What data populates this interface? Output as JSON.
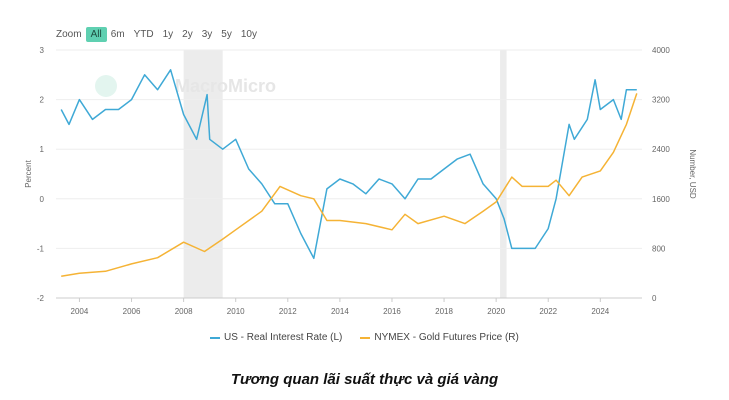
{
  "zoom": {
    "label": "Zoom",
    "buttons": [
      "All",
      "6m",
      "YTD",
      "1y",
      "2y",
      "3y",
      "5y",
      "10y"
    ],
    "active": "All"
  },
  "watermark": "MacroMicro",
  "colors": {
    "rate": "#3fa9d6",
    "gold": "#f5b335",
    "band": "#ececec",
    "active": "#5fd0b1"
  },
  "caption": "Tương quan lãi suất thực và giá vàng",
  "chart_data": {
    "type": "line",
    "title": "",
    "xlabel": "",
    "ylabel_left": "Percent",
    "ylabel_right": "Number, USD",
    "xlim": [
      2003.1,
      2025.6
    ],
    "ylim_left": [
      -2,
      3
    ],
    "ylim_right": [
      0,
      4000
    ],
    "xticks": [
      "2004",
      "2006",
      "2008",
      "2010",
      "2012",
      "2014",
      "2016",
      "2018",
      "2020",
      "2022",
      "2024"
    ],
    "yticks_left": [
      "3",
      "2",
      "1",
      "0",
      "-1",
      "-2"
    ],
    "yticks_right": [
      "4000",
      "3200",
      "2400",
      "1600",
      "800",
      "0"
    ],
    "grid": true,
    "legend_position": "bottom",
    "shaded_periods": [
      [
        2008.0,
        2009.5
      ],
      [
        2020.15,
        2020.4
      ]
    ],
    "series": [
      {
        "name": "US - Real Interest Rate (L)",
        "axis": "left",
        "x": [
          2003.3,
          2003.6,
          2004.0,
          2004.5,
          2005.0,
          2005.5,
          2006.0,
          2006.5,
          2007.0,
          2007.5,
          2008.0,
          2008.5,
          2008.9,
          2009.0,
          2009.5,
          2010.0,
          2010.5,
          2011.0,
          2011.5,
          2012.0,
          2012.5,
          2013.0,
          2013.5,
          2014.0,
          2014.5,
          2015.0,
          2015.5,
          2016.0,
          2016.5,
          2017.0,
          2017.5,
          2018.0,
          2018.5,
          2019.0,
          2019.5,
          2020.0,
          2020.3,
          2020.6,
          2021.0,
          2021.5,
          2022.0,
          2022.3,
          2022.8,
          2023.0,
          2023.5,
          2023.8,
          2024.0,
          2024.5,
          2024.8,
          2025.0,
          2025.4
        ],
        "values": [
          1.8,
          1.5,
          2.0,
          1.6,
          1.8,
          1.8,
          2.0,
          2.5,
          2.2,
          2.6,
          1.7,
          1.2,
          2.1,
          1.2,
          1.0,
          1.2,
          0.6,
          0.3,
          -0.1,
          -0.1,
          -0.7,
          -1.2,
          0.2,
          0.4,
          0.3,
          0.1,
          0.4,
          0.3,
          0.0,
          0.4,
          0.4,
          0.6,
          0.8,
          0.9,
          0.3,
          0.0,
          -0.4,
          -1.0,
          -1.0,
          -1.0,
          -0.6,
          0.0,
          1.5,
          1.2,
          1.6,
          2.4,
          1.8,
          2.0,
          1.6,
          2.2,
          2.2
        ]
      },
      {
        "name": "NYMEX - Gold Futures Price (R)",
        "axis": "right",
        "x": [
          2003.3,
          2004.0,
          2005.0,
          2006.0,
          2007.0,
          2008.0,
          2008.8,
          2009.5,
          2010.0,
          2011.0,
          2011.7,
          2012.5,
          2013.0,
          2013.5,
          2014.0,
          2015.0,
          2016.0,
          2016.5,
          2017.0,
          2018.0,
          2018.8,
          2019.5,
          2020.0,
          2020.6,
          2021.0,
          2022.0,
          2022.3,
          2022.8,
          2023.3,
          2024.0,
          2024.5,
          2025.0,
          2025.4
        ],
        "values": [
          350,
          400,
          430,
          550,
          650,
          900,
          750,
          950,
          1100,
          1400,
          1800,
          1650,
          1600,
          1250,
          1250,
          1200,
          1100,
          1350,
          1200,
          1320,
          1200,
          1400,
          1550,
          1950,
          1800,
          1800,
          1900,
          1650,
          1950,
          2050,
          2350,
          2800,
          3300
        ]
      }
    ]
  }
}
